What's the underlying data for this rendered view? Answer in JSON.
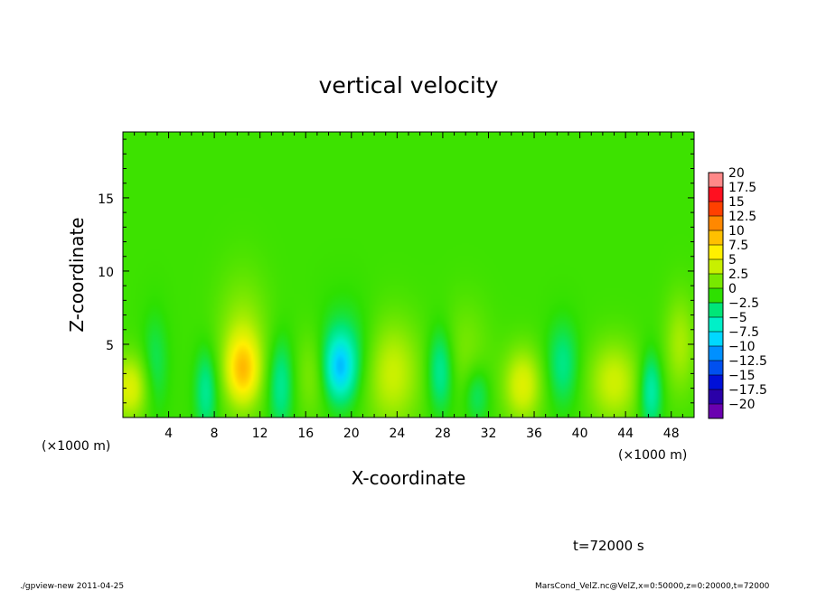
{
  "chart_data": {
    "type": "heatmap",
    "title": "vertical velocity",
    "xlabel": "X-coordinate",
    "ylabel": "Z-coordinate",
    "x_unit_left": "(×1000 m)",
    "x_unit_right": "(×1000 m)",
    "xlim": [
      0,
      50
    ],
    "ylim": [
      0,
      19.5
    ],
    "x_ticks": [
      4,
      8,
      12,
      16,
      20,
      24,
      28,
      32,
      36,
      40,
      44,
      48
    ],
    "x_tick_labels": [
      "4",
      "8",
      "12",
      "16",
      "20",
      "24",
      "28",
      "32",
      "36",
      "40",
      "44",
      "48"
    ],
    "y_ticks": [
      5,
      10,
      15
    ],
    "y_tick_labels": [
      "5",
      "10",
      "15"
    ],
    "color_levels": [
      -20,
      -17.5,
      -15,
      -12.5,
      -10,
      -7.5,
      -5,
      -2.5,
      0,
      2.5,
      5,
      7.5,
      10,
      12.5,
      15,
      17.5,
      20
    ],
    "colorbar_labels": [
      "20",
      "17.5",
      "15",
      "12.5",
      "10",
      "7.5",
      "5",
      "2.5",
      "0",
      "−2.5",
      "−5",
      "−7.5",
      "−10",
      "−12.5",
      "−15",
      "−17.5",
      "−20"
    ],
    "colorbar_colors": [
      "#6a00b0",
      "#2a00a8",
      "#0010d8",
      "#0050f0",
      "#0090ff",
      "#00d8ff",
      "#00f0c8",
      "#00e678",
      "#2ee000",
      "#78e800",
      "#c8f000",
      "#fff000",
      "#ffc000",
      "#ff8800",
      "#ff4000",
      "#ff1020",
      "#ff8888"
    ],
    "background_value": 0.5,
    "features": [
      {
        "x": 10.5,
        "z": 3.2,
        "value": 6.8,
        "sx": 1.0,
        "sz": 1.6
      },
      {
        "x": 10.5,
        "z": 5.0,
        "value": 3.5,
        "sx": 1.6,
        "sz": 3.2
      },
      {
        "x": 23.5,
        "z": 3.0,
        "value": 4.8,
        "sx": 1.8,
        "sz": 2.6
      },
      {
        "x": 35.0,
        "z": 2.2,
        "value": 5.5,
        "sx": 1.2,
        "sz": 1.8
      },
      {
        "x": 43.0,
        "z": 2.4,
        "value": 4.8,
        "sx": 1.6,
        "sz": 2.0
      },
      {
        "x": 0.6,
        "z": 2.0,
        "value": 5.5,
        "sx": 1.2,
        "sz": 1.6
      },
      {
        "x": 48.8,
        "z": 5.0,
        "value": 3.5,
        "sx": 1.0,
        "sz": 2.4
      },
      {
        "x": 19.0,
        "z": 3.4,
        "value": -6.5,
        "sx": 0.9,
        "sz": 1.5
      },
      {
        "x": 19.5,
        "z": 4.2,
        "value": -3.0,
        "sx": 1.8,
        "sz": 2.4
      },
      {
        "x": 7.3,
        "z": 1.8,
        "value": -4.0,
        "sx": 0.7,
        "sz": 2.0
      },
      {
        "x": 13.8,
        "z": 2.2,
        "value": -4.0,
        "sx": 0.8,
        "sz": 2.2
      },
      {
        "x": 27.8,
        "z": 3.2,
        "value": -4.5,
        "sx": 0.8,
        "sz": 2.0
      },
      {
        "x": 31.0,
        "z": 1.6,
        "value": -3.0,
        "sx": 0.8,
        "sz": 1.4
      },
      {
        "x": 38.5,
        "z": 3.6,
        "value": -3.5,
        "sx": 1.0,
        "sz": 2.0
      },
      {
        "x": 46.2,
        "z": 1.8,
        "value": -5.0,
        "sx": 0.7,
        "sz": 1.8
      },
      {
        "x": 2.8,
        "z": 3.5,
        "value": -2.5,
        "sx": 0.8,
        "sz": 2.4
      },
      {
        "x": 16.5,
        "z": 3.0,
        "value": 2.5,
        "sx": 1.0,
        "sz": 2.2
      },
      {
        "x": 30.0,
        "z": 4.5,
        "value": 2.0,
        "sx": 1.5,
        "sz": 2.5
      }
    ]
  },
  "annotations": {
    "time": "t=72000 s",
    "footer_left": "./gpview-new  2011-04-25",
    "footer_right": "MarsCond_VelZ.nc@VelZ,x=0:50000,z=0:20000,t=72000"
  }
}
